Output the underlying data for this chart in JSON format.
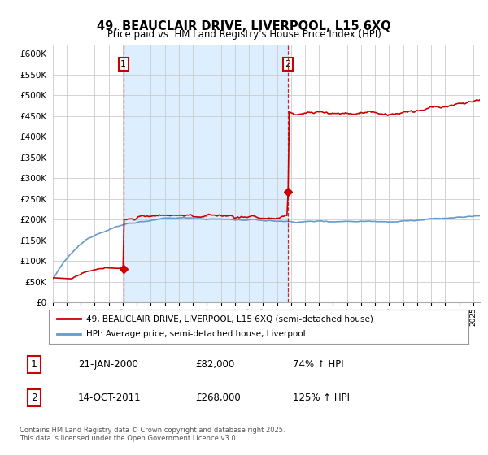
{
  "title": "49, BEAUCLAIR DRIVE, LIVERPOOL, L15 6XQ",
  "subtitle": "Price paid vs. HM Land Registry's House Price Index (HPI)",
  "footnote": "Contains HM Land Registry data © Crown copyright and database right 2025.\nThis data is licensed under the Open Government Licence v3.0.",
  "legend_line1": "49, BEAUCLAIR DRIVE, LIVERPOOL, L15 6XQ (semi-detached house)",
  "legend_line2": "HPI: Average price, semi-detached house, Liverpool",
  "sale1_label": "1",
  "sale1_date": "21-JAN-2000",
  "sale1_price": "£82,000",
  "sale1_hpi": "74% ↑ HPI",
  "sale1_year": 2000.05,
  "sale1_value": 82000,
  "sale2_label": "2",
  "sale2_date": "14-OCT-2011",
  "sale2_price": "£268,000",
  "sale2_hpi": "125% ↑ HPI",
  "sale2_year": 2011.79,
  "sale2_value": 268000,
  "ylim": [
    0,
    620000
  ],
  "yticks": [
    0,
    50000,
    100000,
    150000,
    200000,
    250000,
    300000,
    350000,
    400000,
    450000,
    500000,
    550000,
    600000
  ],
  "ytick_labels": [
    "£0",
    "£50K",
    "£100K",
    "£150K",
    "£200K",
    "£250K",
    "£300K",
    "£350K",
    "£400K",
    "£450K",
    "£500K",
    "£550K",
    "£600K"
  ],
  "red_color": "#cc0000",
  "blue_color": "#6699cc",
  "shade_color": "#ddeeff",
  "background_color": "#ffffff",
  "grid_color": "#cccccc",
  "xlim_start": 1995,
  "xlim_end": 2025.5
}
